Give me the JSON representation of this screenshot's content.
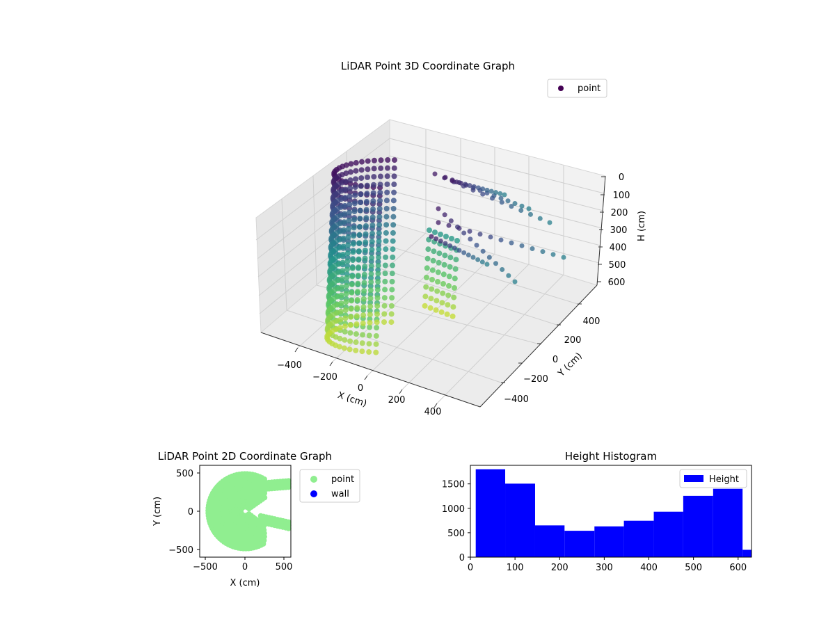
{
  "chart_data": [
    {
      "type": "scatter",
      "projection": "3d",
      "title": "LiDAR Point 3D Coordinate Graph",
      "xlabel": "X (cm)",
      "ylabel": "Y (cm)",
      "zlabel": "H (cm)",
      "xticks": [
        "−400",
        "−200",
        "0",
        "200",
        "400"
      ],
      "yticks": [
        "−400",
        "−200",
        "0",
        "200",
        "400"
      ],
      "zticks": [
        "0",
        "100",
        "200",
        "300",
        "400",
        "500",
        "600"
      ],
      "xlim": [
        -560,
        560
      ],
      "ylim": [
        -560,
        560
      ],
      "zlim": [
        0,
        630
      ],
      "z_axis_inverted": true,
      "colormap": "viridis",
      "grid": true,
      "legend": {
        "position": "top-right",
        "entries": [
          "point"
        ]
      },
      "series": [
        {
          "name": "point",
          "color": "#440154"
        }
      ]
    },
    {
      "type": "scatter",
      "title": "LiDAR Point 2D Coordinate Graph",
      "xlabel": "X (cm)",
      "ylabel": "Y (cm)",
      "xticks": [
        "−500",
        "0",
        "500"
      ],
      "yticks": [
        "−500",
        "0",
        "500"
      ],
      "xlim": [
        -590,
        590
      ],
      "ylim": [
        -590,
        590
      ],
      "legend": {
        "position": "outside-right",
        "entries": [
          "point",
          "wall"
        ]
      },
      "series": [
        {
          "name": "point",
          "color": "#90ee90"
        },
        {
          "name": "wall",
          "color": "#0000ff"
        }
      ]
    },
    {
      "type": "bar",
      "subtype": "histogram",
      "title": "Height Histogram",
      "xlabel": "",
      "ylabel": "",
      "xticks": [
        "0",
        "100",
        "200",
        "300",
        "400",
        "500",
        "600"
      ],
      "yticks": [
        "0",
        "500",
        "1000",
        "1500"
      ],
      "xlim": [
        0,
        630
      ],
      "ylim": [
        0,
        1880
      ],
      "legend": {
        "position": "top-right",
        "entries": [
          "Height"
        ]
      },
      "series": [
        {
          "name": "Height",
          "color": "#0000ff",
          "bins": [
            12,
            78,
            145,
            211,
            278,
            344,
            411,
            477,
            544,
            610,
            630
          ],
          "values": [
            1800,
            1505,
            650,
            540,
            630,
            745,
            930,
            1255,
            1400,
            150
          ]
        }
      ]
    }
  ]
}
